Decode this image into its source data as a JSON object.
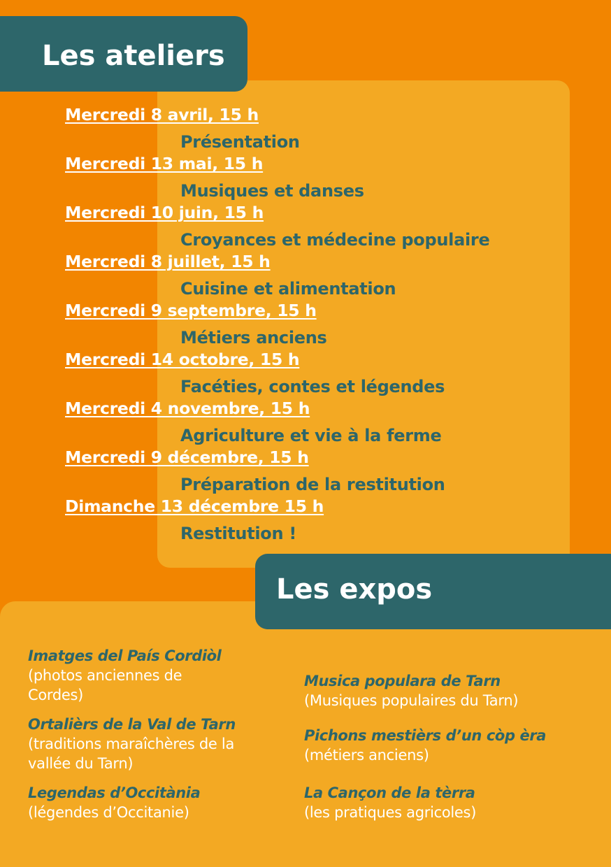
{
  "ateliers": {
    "title": "Les ateliers",
    "items": [
      {
        "date": "Mercredi 8 avril, 15 h",
        "topic": "Présentation"
      },
      {
        "date": "Mercredi 13 mai, 15 h",
        "topic": "Musiques et danses"
      },
      {
        "date": "Mercredi 10 juin, 15 h",
        "topic": "Croyances et médecine populaire"
      },
      {
        "date": "Mercredi 8 juillet, 15 h",
        "topic": "Cuisine et alimentation"
      },
      {
        "date": "Mercredi 9 septembre, 15 h",
        "topic": "Métiers anciens"
      },
      {
        "date": "Mercredi 14 octobre, 15 h",
        "topic": "Facéties, contes et légendes"
      },
      {
        "date": "Mercredi 4 novembre, 15 h",
        "topic": "Agriculture et vie à la ferme"
      },
      {
        "date": "Mercredi 9 décembre, 15 h",
        "topic": "Préparation de la restitution"
      },
      {
        "date": "Dimanche 13 décembre 15 h",
        "topic": "Restitution !"
      }
    ]
  },
  "expos": {
    "title": "Les expos",
    "left": [
      {
        "title": "Imatges del País Cordiòl",
        "desc": "(photos anciennes de Cordes)"
      },
      {
        "title": "Ortalièrs de la Val de Tarn",
        "desc": "(traditions maraîchères de la vallée du Tarn)"
      },
      {
        "title": "Legendas d’Occitània",
        "desc": "(légendes d’Occitanie)"
      }
    ],
    "right": [
      {
        "title": "Musica populara de Tarn",
        "desc": "(Musiques populaires du Tarn)"
      },
      {
        "title": "Pichons mestièrs d’un còp èra",
        "desc": "(métiers anciens)"
      },
      {
        "title": "La Cançon de la tèrra",
        "desc": "(les pratiques agricoles)"
      }
    ]
  },
  "colors": {
    "background": "#F28500",
    "panel": "#F3A923",
    "accent": "#2D666A",
    "text_light": "#FFFFFF"
  }
}
